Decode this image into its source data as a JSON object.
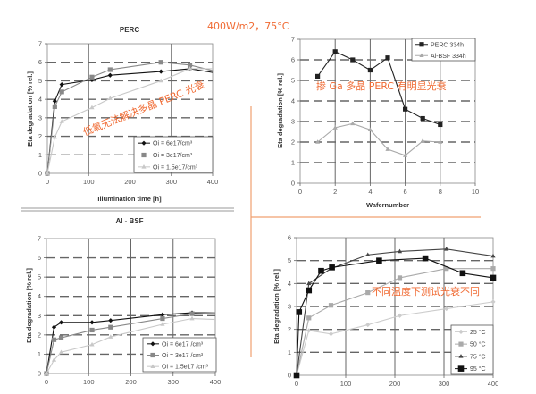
{
  "header_annotation": "400W/m2，75°C",
  "colors": {
    "annotation": "#f06a32",
    "divider": "#f0a070"
  },
  "chart_data": [
    {
      "id": "perc",
      "type": "line",
      "title": "PERC",
      "xlabel": "Illumination time [h]",
      "ylabel": "Eta degradation [% rel.]",
      "xlim": [
        0,
        400
      ],
      "ylim": [
        0,
        7
      ],
      "xticks": [
        0,
        100,
        200,
        300,
        400
      ],
      "yticks": [
        0,
        1,
        2,
        3,
        4,
        5,
        6,
        7
      ],
      "grid": true,
      "legend_position": "bottom-right",
      "annotation": "低氧无法解决多晶 PERC 光衰",
      "series": [
        {
          "name": "Oi = 6e17/cm³",
          "marker": "diamond",
          "color": "#111111",
          "x": [
            0,
            18,
            35,
            108,
            152,
            275,
            345,
            400
          ],
          "y": [
            0,
            3.9,
            4.8,
            5.05,
            5.3,
            5.5,
            5.65,
            5.45
          ]
        },
        {
          "name": "Oi = 3e17/cm³",
          "marker": "square",
          "color": "#888888",
          "x": [
            0,
            18,
            35,
            108,
            152,
            275,
            345,
            400
          ],
          "y": [
            0,
            3.6,
            4.4,
            5.2,
            5.6,
            6.0,
            5.85,
            5.55
          ]
        },
        {
          "name": "Oi = 1.5e17/cm³",
          "marker": "triangle",
          "color": "#c8c8c8",
          "x": [
            0,
            18,
            35,
            108,
            152,
            275,
            345,
            400
          ],
          "y": [
            0,
            1.95,
            2.8,
            3.55,
            4.05,
            5.0,
            5.65,
            5.65
          ]
        }
      ]
    },
    {
      "id": "wafer",
      "type": "line",
      "title": "",
      "xlabel": "Wafernumber",
      "ylabel": "Eta degradation [% rel.]",
      "xlim": [
        0,
        10
      ],
      "ylim": [
        0,
        7
      ],
      "xticks": [
        0,
        2,
        4,
        6,
        8,
        10
      ],
      "yticks": [
        0,
        1,
        2,
        3,
        4,
        5,
        6,
        7
      ],
      "grid": true,
      "legend_position": "top-right",
      "annotation": "掺 Ga 多晶 PERC 有明显光衰",
      "series": [
        {
          "name": "PERC 334h",
          "marker": "square",
          "color": "#222222",
          "x": [
            1,
            2,
            3,
            4,
            5,
            6,
            7,
            8
          ],
          "y": [
            5.2,
            6.4,
            6.0,
            5.5,
            6.1,
            3.6,
            3.15,
            2.85
          ]
        },
        {
          "name": "Al-BSF 334h",
          "marker": "triangle",
          "color": "#aaaaaa",
          "x": [
            1,
            2,
            3,
            4,
            5,
            6,
            7,
            8
          ],
          "y": [
            2.0,
            2.7,
            2.9,
            2.6,
            1.65,
            1.35,
            2.05,
            2.0
          ]
        }
      ]
    },
    {
      "id": "albsf",
      "type": "line",
      "title": "Al - BSF",
      "xlabel": "",
      "ylabel": "Eta degradation [% rel.]",
      "xlim": [
        0,
        400
      ],
      "ylim": [
        0,
        7
      ],
      "xticks": [
        0,
        100,
        200,
        300,
        400
      ],
      "yticks": [
        0,
        1,
        2,
        3,
        4,
        5,
        6,
        7
      ],
      "grid": true,
      "legend_position": "bottom-right",
      "series": [
        {
          "name": "Oi = 6e17 /cm³",
          "marker": "diamond",
          "color": "#111111",
          "x": [
            0,
            18,
            35,
            108,
            152,
            275,
            345,
            400
          ],
          "y": [
            0,
            2.4,
            2.65,
            2.65,
            2.75,
            3.05,
            3.15,
            3.15
          ]
        },
        {
          "name": "Oi = 3e17 /cm³",
          "marker": "square",
          "color": "#888888",
          "x": [
            0,
            18,
            35,
            108,
            152,
            275,
            345,
            400
          ],
          "y": [
            0,
            1.75,
            1.85,
            2.25,
            2.4,
            2.85,
            3.1,
            3.15
          ]
        },
        {
          "name": "Oi = 1.5e17 /cm³",
          "marker": "triangle",
          "color": "#c8c8c8",
          "x": [
            0,
            18,
            35,
            108,
            152,
            275,
            345,
            400
          ],
          "y": [
            0,
            0.7,
            1.1,
            1.5,
            1.9,
            2.55,
            2.85,
            2.8
          ]
        }
      ]
    },
    {
      "id": "temperature",
      "type": "line",
      "title": "",
      "xlabel": "",
      "ylabel": "Eta degradation [% rel.]",
      "xlim": [
        0,
        400
      ],
      "ylim": [
        0,
        6
      ],
      "xticks": [
        0,
        100,
        200,
        300,
        400
      ],
      "yticks": [
        0,
        1,
        2,
        3,
        4,
        5,
        6
      ],
      "grid": true,
      "legend_position": "bottom-right",
      "annotation": "不同温度下测试光衰不同",
      "series": [
        {
          "name": "25 °C",
          "marker": "diamond",
          "color": "#cccccc",
          "x": [
            0,
            25,
            70,
            145,
            210,
            305,
            400
          ],
          "y": [
            0,
            1.95,
            1.8,
            2.2,
            2.6,
            2.9,
            3.2
          ]
        },
        {
          "name": "50 °C",
          "marker": "square",
          "color": "#aaaaaa",
          "x": [
            0,
            25,
            70,
            145,
            210,
            305,
            400
          ],
          "y": [
            0,
            2.5,
            3.05,
            3.6,
            4.25,
            4.65,
            4.65
          ]
        },
        {
          "name": "75 °C",
          "marker": "triangle",
          "color": "#444444",
          "x": [
            0,
            25,
            70,
            145,
            210,
            305,
            400
          ],
          "y": [
            0,
            4.0,
            4.65,
            5.25,
            5.4,
            5.5,
            5.2
          ]
        },
        {
          "name": "95 °C",
          "marker": "square-big",
          "color": "#111111",
          "x": [
            0,
            5,
            25,
            50,
            72,
            168,
            262,
            338,
            400
          ],
          "y": [
            0,
            2.75,
            3.7,
            4.55,
            4.7,
            5.0,
            5.1,
            4.45,
            4.25
          ]
        }
      ]
    }
  ]
}
